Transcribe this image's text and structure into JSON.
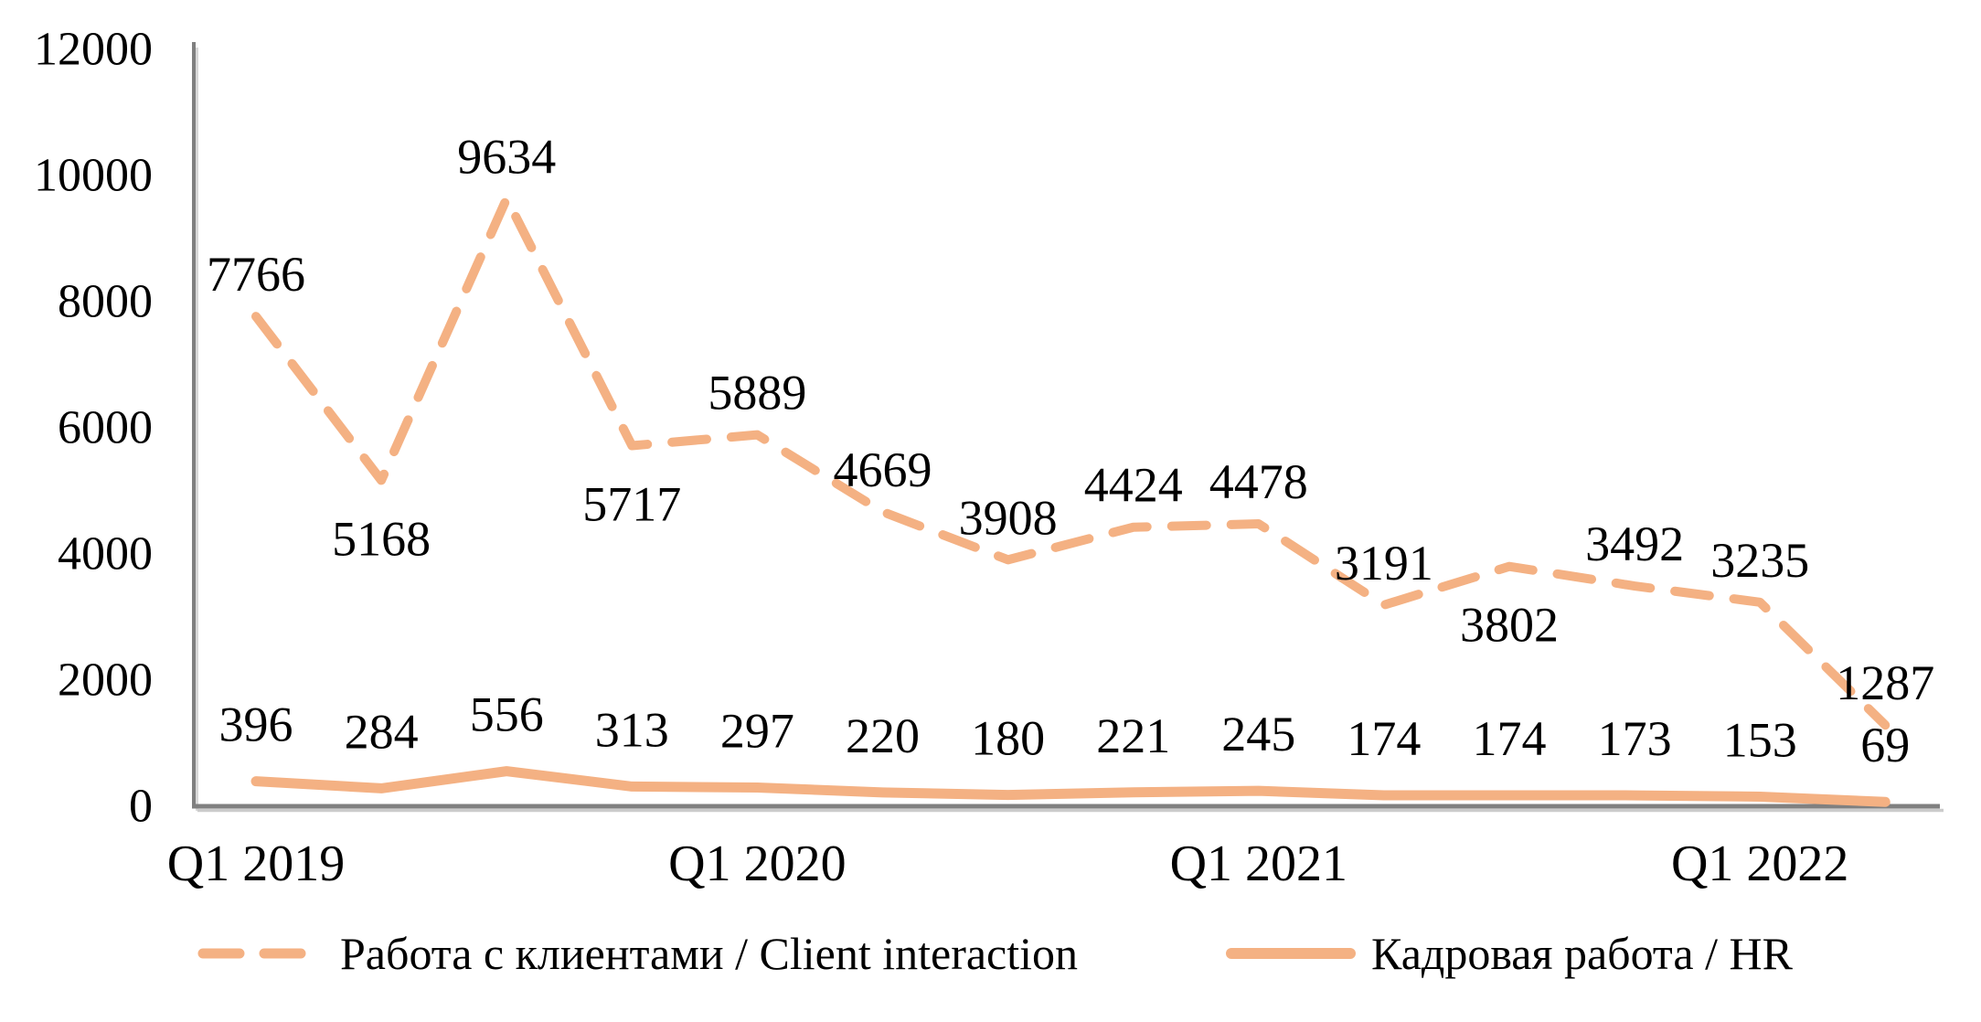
{
  "chart_data": {
    "type": "line",
    "title": "",
    "xlabel": "",
    "ylabel": "",
    "ylim": [
      0,
      12000
    ],
    "y_ticks": [
      0,
      2000,
      4000,
      6000,
      8000,
      10000,
      12000
    ],
    "n_points": 14,
    "x_tick_labels": [
      {
        "label": "Q1 2019",
        "point_index": 0
      },
      {
        "label": "Q1 2020",
        "point_index": 4
      },
      {
        "label": "Q1 2021",
        "point_index": 8
      },
      {
        "label": "Q1 2022",
        "point_index": 12
      }
    ],
    "grid": false,
    "legend_position": "bottom",
    "axis_color": "#808080",
    "text_color": "#000000",
    "series": [
      {
        "name": "Работа с клиентами / Client interaction",
        "line_style": "dashed",
        "color": "#F4B183",
        "values": [
          7766,
          5168,
          9634,
          5717,
          5889,
          4669,
          3908,
          4424,
          4478,
          3191,
          3802,
          3492,
          3235,
          1287
        ],
        "label_side": [
          "above",
          "below",
          "above",
          "below",
          "above",
          "above",
          "above",
          "above",
          "above",
          "above",
          "below",
          "above",
          "above",
          "above"
        ]
      },
      {
        "name": "Кадровая работа / HR",
        "line_style": "solid",
        "color": "#F4B183",
        "values": [
          396,
          284,
          556,
          313,
          297,
          220,
          180,
          221,
          245,
          174,
          174,
          173,
          153,
          69
        ],
        "label_side": [
          "above",
          "above",
          "above",
          "above",
          "above",
          "above",
          "above",
          "above",
          "above",
          "above",
          "above",
          "above",
          "above",
          "above"
        ]
      }
    ]
  }
}
